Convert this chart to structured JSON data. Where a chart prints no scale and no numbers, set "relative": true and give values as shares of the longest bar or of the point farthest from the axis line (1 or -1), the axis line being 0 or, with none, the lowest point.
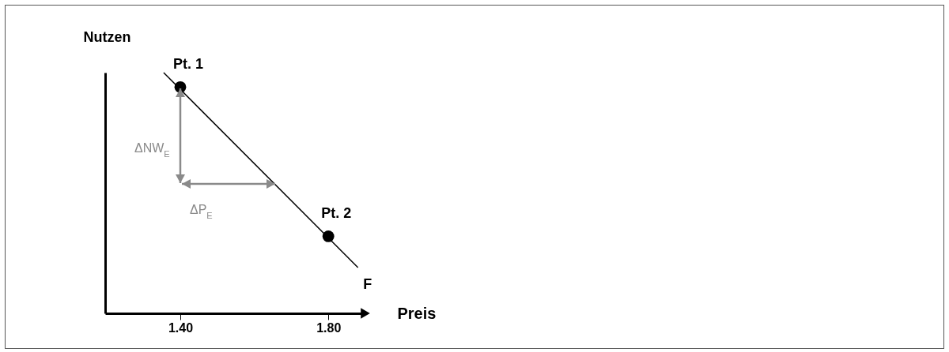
{
  "chart_data": {
    "type": "line",
    "xlabel": "Preis",
    "ylabel": "Nutzen",
    "relative": true,
    "tick_labels": "x",
    "xlim": [
      1.197,
      1.9
    ],
    "xticks": [
      {
        "value": 1.4,
        "label": "1.40"
      },
      {
        "value": 1.8,
        "label": "1.80"
      }
    ],
    "series": [
      {
        "name": "F",
        "color": "#000000",
        "x": [
          1.355,
          1.88
        ],
        "values": [
          1,
          0.19
        ]
      },
      {
        "type": "scatter",
        "marker": "circle",
        "color": "#000000",
        "x": [
          1.4,
          1.8
        ],
        "values": [
          0.94,
          0.32
        ]
      }
    ],
    "annotations": [
      "ΔNW$_{E}$",
      "ΔP$_{E}$",
      {
        "text": "Pt. 1",
        "x": 1.4,
        "y": 0.94
      },
      {
        "text": "Pt. 2",
        "x": 1.8,
        "y": 0.32
      }
    ]
  }
}
